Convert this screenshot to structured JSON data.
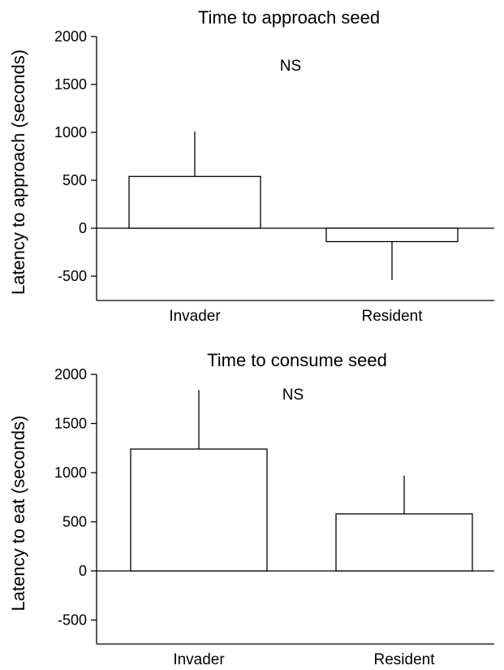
{
  "chart_data": [
    {
      "type": "bar",
      "title": "Time to approach seed",
      "ylabel": "Latency to approach (seconds)",
      "xlabel": "",
      "categories": [
        "Invader",
        "Resident"
      ],
      "values": [
        540,
        -140
      ],
      "error_bars_upper": [
        470,
        400
      ],
      "error_direction": [
        "up",
        "down"
      ],
      "ylim": [
        -750,
        2000
      ],
      "yticks": [
        2000,
        1500,
        1000,
        500,
        0,
        -500
      ],
      "ytick_labels": [
        "2000",
        "1500",
        "1000",
        "500",
        "0",
        "-500"
      ],
      "annotation": "NS",
      "grid": false
    },
    {
      "type": "bar",
      "title": "Time to consume seed",
      "ylabel": "Latency to eat (seconds)",
      "xlabel": "",
      "categories": [
        "Invader",
        "Resident"
      ],
      "values": [
        1240,
        580
      ],
      "error_bars_upper": [
        600,
        390
      ],
      "error_direction": [
        "up",
        "up"
      ],
      "ylim": [
        -750,
        2000
      ],
      "yticks": [
        2000,
        1500,
        1000,
        500,
        0,
        -500
      ],
      "ytick_labels": [
        "2000",
        "1500",
        "1000",
        "500",
        "0",
        "-500"
      ],
      "annotation": "NS",
      "grid": false
    }
  ]
}
